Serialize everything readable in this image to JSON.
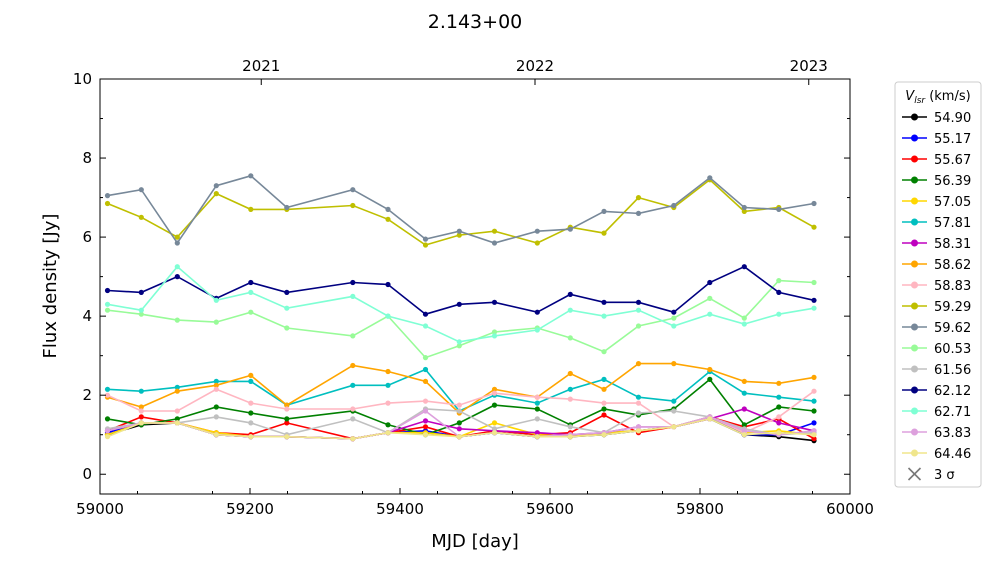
{
  "chart_data": {
    "type": "line",
    "title": "2.143+00",
    "xlabel": "MJD [day]",
    "ylabel": "Flux density [Jy]",
    "xlim": [
      59000,
      60000
    ],
    "ylim": [
      -0.5,
      10
    ],
    "xticks": [
      "59000",
      "59200",
      "59400",
      "59600",
      "59800",
      "60000"
    ],
    "yticks": [
      "0",
      "2",
      "4",
      "6",
      "8",
      "10"
    ],
    "top_axis_ticks": [
      {
        "label": "2021",
        "mjd": 59215
      },
      {
        "label": "2022",
        "mjd": 59580
      },
      {
        "label": "2023",
        "mjd": 59945
      }
    ],
    "grid": false,
    "legend_position": "right, outside plot",
    "legend_title": "Vlsr (km/s)",
    "legend_title_parts": {
      "main": "V",
      "sub": "lsr",
      "rest": " (km/s)"
    },
    "limit_marker_label": "3 σ",
    "x": [
      59010,
      59055,
      59103,
      59155,
      59201,
      59249,
      59337,
      59384,
      59434,
      59479,
      59526,
      59583,
      59627,
      59672,
      59718,
      59765,
      59813,
      59859,
      59905,
      59952
    ],
    "series": [
      {
        "name": "54.90",
        "color": "#000000",
        "values": [
          1.0,
          1.25,
          1.3,
          1.0,
          0.95,
          0.95,
          0.9,
          1.05,
          1.05,
          0.95,
          1.05,
          0.95,
          0.95,
          1.0,
          1.1,
          1.2,
          1.4,
          1.0,
          0.95,
          0.85
        ]
      },
      {
        "name": "55.17",
        "color": "#0000ff",
        "values": [
          1.05,
          1.3,
          1.3,
          1.0,
          0.95,
          0.95,
          0.9,
          1.05,
          1.1,
          0.95,
          1.05,
          0.95,
          0.95,
          1.05,
          1.1,
          1.2,
          1.45,
          1.0,
          1.0,
          1.3
        ]
      },
      {
        "name": "55.67",
        "color": "#ff0000",
        "values": [
          1.1,
          1.45,
          1.3,
          1.05,
          1.0,
          1.3,
          0.9,
          1.05,
          1.2,
          0.95,
          1.1,
          1.0,
          1.05,
          1.5,
          1.05,
          1.2,
          1.45,
          1.2,
          1.4,
          0.9
        ]
      },
      {
        "name": "56.39",
        "color": "#008000",
        "values": [
          1.4,
          1.25,
          1.4,
          1.7,
          1.55,
          1.4,
          1.6,
          1.25,
          1.0,
          1.3,
          1.75,
          1.65,
          1.25,
          1.65,
          1.5,
          1.65,
          2.4,
          1.25,
          1.7,
          1.6
        ]
      },
      {
        "name": "57.05",
        "color": "#ffd700",
        "values": [
          1.0,
          1.3,
          1.3,
          1.05,
          0.95,
          0.95,
          0.9,
          1.05,
          1.05,
          0.95,
          1.3,
          1.0,
          0.95,
          1.05,
          1.1,
          1.2,
          1.45,
          1.05,
          1.1,
          1.0
        ]
      },
      {
        "name": "57.81",
        "color": "#00bfbf",
        "values": [
          2.15,
          2.1,
          2.2,
          2.35,
          2.35,
          1.75,
          2.25,
          2.25,
          2.65,
          1.6,
          2.0,
          1.8,
          2.15,
          2.4,
          1.95,
          1.85,
          2.6,
          2.05,
          1.95,
          1.85
        ]
      },
      {
        "name": "58.31",
        "color": "#bf00bf",
        "values": [
          1.1,
          1.3,
          1.3,
          1.0,
          0.95,
          0.95,
          0.9,
          1.05,
          1.35,
          1.15,
          1.1,
          1.05,
          1.0,
          1.05,
          1.2,
          1.2,
          1.4,
          1.65,
          1.3,
          1.1
        ]
      },
      {
        "name": "58.62",
        "color": "#ffa500",
        "values": [
          1.95,
          1.7,
          2.1,
          2.25,
          2.5,
          1.75,
          2.75,
          2.6,
          2.35,
          1.55,
          2.15,
          1.95,
          2.55,
          2.15,
          2.8,
          2.8,
          2.65,
          2.35,
          2.3,
          2.45
        ]
      },
      {
        "name": "58.83",
        "color": "#ffb6c1",
        "values": [
          2.0,
          1.6,
          1.6,
          2.15,
          1.8,
          1.65,
          1.65,
          1.8,
          1.85,
          1.75,
          2.05,
          1.95,
          1.9,
          1.8,
          1.8,
          1.2,
          1.45,
          1.05,
          1.45,
          2.1
        ]
      },
      {
        "name": "59.29",
        "color": "#bfbf00",
        "values": [
          6.85,
          6.5,
          6.0,
          7.1,
          6.7,
          6.7,
          6.8,
          6.45,
          5.8,
          6.05,
          6.15,
          5.85,
          6.25,
          6.1,
          7.0,
          6.75,
          7.45,
          6.65,
          6.75,
          6.25
        ]
      },
      {
        "name": "59.62",
        "color": "#778899",
        "values": [
          7.05,
          7.2,
          5.85,
          7.3,
          7.55,
          6.75,
          7.2,
          6.7,
          5.95,
          6.15,
          5.85,
          6.15,
          6.2,
          6.65,
          6.6,
          6.8,
          7.5,
          6.75,
          6.7,
          6.85
        ]
      },
      {
        "name": "60.53",
        "color": "#98fb98",
        "values": [
          4.15,
          4.05,
          3.9,
          3.85,
          4.1,
          3.7,
          3.5,
          4.0,
          2.95,
          3.25,
          3.6,
          3.7,
          3.45,
          3.1,
          3.75,
          3.95,
          4.45,
          3.95,
          4.9,
          4.85
        ]
      },
      {
        "name": "61.56",
        "color": "#c0c0c0",
        "values": [
          1.15,
          1.3,
          1.3,
          1.45,
          1.3,
          1.0,
          1.4,
          1.05,
          1.65,
          1.6,
          1.15,
          1.4,
          1.2,
          1.05,
          1.55,
          1.6,
          1.45,
          1.15,
          1.0,
          1.05
        ]
      },
      {
        "name": "62.12",
        "color": "#000080",
        "values": [
          4.65,
          4.6,
          5.0,
          4.45,
          4.85,
          4.6,
          4.85,
          4.8,
          4.05,
          4.3,
          4.35,
          4.1,
          4.55,
          4.35,
          4.35,
          4.1,
          4.85,
          5.25,
          4.6,
          4.4
        ]
      },
      {
        "name": "62.71",
        "color": "#7fffd4",
        "values": [
          4.3,
          4.15,
          5.25,
          4.4,
          4.6,
          4.2,
          4.5,
          4.0,
          3.75,
          3.35,
          3.5,
          3.65,
          4.15,
          4.0,
          4.15,
          3.75,
          4.05,
          3.8,
          4.05,
          4.2
        ]
      },
      {
        "name": "63.83",
        "color": "#dda0dd",
        "values": [
          1.1,
          1.3,
          1.3,
          1.0,
          0.95,
          0.95,
          0.9,
          1.05,
          1.6,
          0.95,
          1.05,
          0.95,
          1.0,
          1.05,
          1.2,
          1.2,
          1.45,
          1.1,
          1.0,
          1.1
        ]
      },
      {
        "name": "64.46",
        "color": "#f0e68c",
        "values": [
          0.95,
          1.3,
          1.3,
          1.0,
          0.95,
          0.95,
          0.9,
          1.05,
          1.0,
          0.95,
          1.05,
          0.95,
          0.95,
          1.0,
          1.1,
          1.2,
          1.4,
          1.0,
          1.05,
          1.0
        ]
      }
    ]
  }
}
